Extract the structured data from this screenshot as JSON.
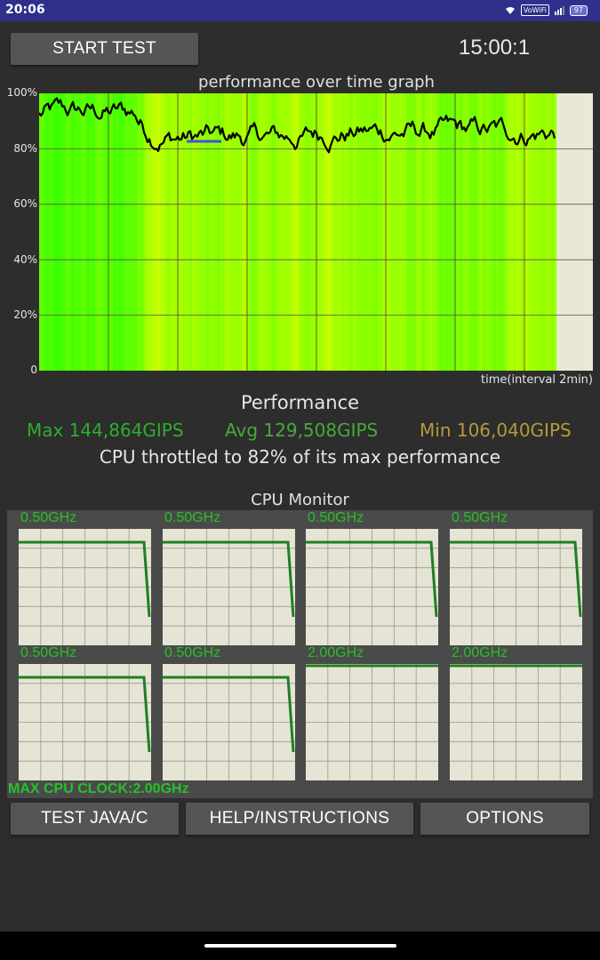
{
  "status_bar": {
    "time": "20:06",
    "vowifi": "VoWiFi",
    "battery": "97"
  },
  "controls": {
    "start_test": "START TEST",
    "timer": "15:00:1"
  },
  "graph": {
    "title": "performance over time graph",
    "y_labels": [
      "100%",
      "80%",
      "60%",
      "40%",
      "20%",
      "0"
    ],
    "x_label": "time(interval 2min)"
  },
  "performance": {
    "title": "Performance",
    "max": "Max 144,864GIPS",
    "avg": "Avg 129,508GIPS",
    "min": "Min 106,040GIPS",
    "throttle": "CPU throttled to 82% of its max performance",
    "colors": {
      "max": "#2eae2e",
      "avg": "#46a93a",
      "min": "#b59a3c"
    }
  },
  "cpu_monitor": {
    "title": "CPU Monitor",
    "cores": [
      {
        "freq": "0.50GHz",
        "level": 0.25,
        "drop": true
      },
      {
        "freq": "0.50GHz",
        "level": 0.25,
        "drop": true
      },
      {
        "freq": "0.50GHz",
        "level": 0.25,
        "drop": true
      },
      {
        "freq": "0.50GHz",
        "level": 0.25,
        "drop": true
      },
      {
        "freq": "0.50GHz",
        "level": 0.25,
        "drop": true
      },
      {
        "freq": "0.50GHz",
        "level": 0.25,
        "drop": true
      },
      {
        "freq": "2.00GHz",
        "level": 1.0,
        "drop": false
      },
      {
        "freq": "2.00GHz",
        "level": 1.0,
        "drop": false
      }
    ],
    "max_clock": "MAX CPU CLOCK:2.00GHz"
  },
  "buttons": {
    "test_java": "TEST JAVA/C",
    "help": "HELP/INSTRUCTIONS",
    "options": "OPTIONS"
  }
}
